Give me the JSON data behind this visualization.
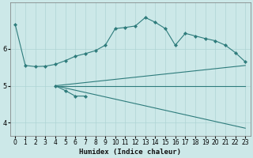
{
  "xlabel": "Humidex (Indice chaleur)",
  "bg_color": "#cce8e8",
  "line_color": "#2d7b7b",
  "grid_color": "#aed4d4",
  "xlim": [
    -0.5,
    23.5
  ],
  "ylim": [
    3.65,
    7.25
  ],
  "yticks": [
    4,
    5,
    6
  ],
  "xticks": [
    0,
    1,
    2,
    3,
    4,
    5,
    6,
    7,
    8,
    9,
    10,
    11,
    12,
    13,
    14,
    15,
    16,
    17,
    18,
    19,
    20,
    21,
    22,
    23
  ],
  "line1_x": [
    0,
    1,
    2,
    3,
    4,
    5,
    6,
    7,
    8,
    9,
    10,
    11,
    12,
    13,
    14,
    15,
    16,
    17,
    18,
    19,
    20,
    21,
    22,
    23
  ],
  "line1_y": [
    6.65,
    5.55,
    5.52,
    5.53,
    5.58,
    5.68,
    5.8,
    5.87,
    5.95,
    6.1,
    6.55,
    6.58,
    6.62,
    6.85,
    6.72,
    6.55,
    6.1,
    6.42,
    6.35,
    6.28,
    6.22,
    6.1,
    5.9,
    5.65
  ],
  "line2_x": [
    4,
    23
  ],
  "line2_y": [
    5.0,
    3.85
  ],
  "line3_x": [
    4,
    23
  ],
  "line3_y": [
    5.0,
    5.55
  ],
  "line4_x": [
    4,
    23
  ],
  "line4_y": [
    5.0,
    5.0
  ],
  "line5_x": [
    4,
    5,
    6,
    7
  ],
  "line5_y": [
    5.0,
    4.87,
    4.72,
    4.72
  ]
}
